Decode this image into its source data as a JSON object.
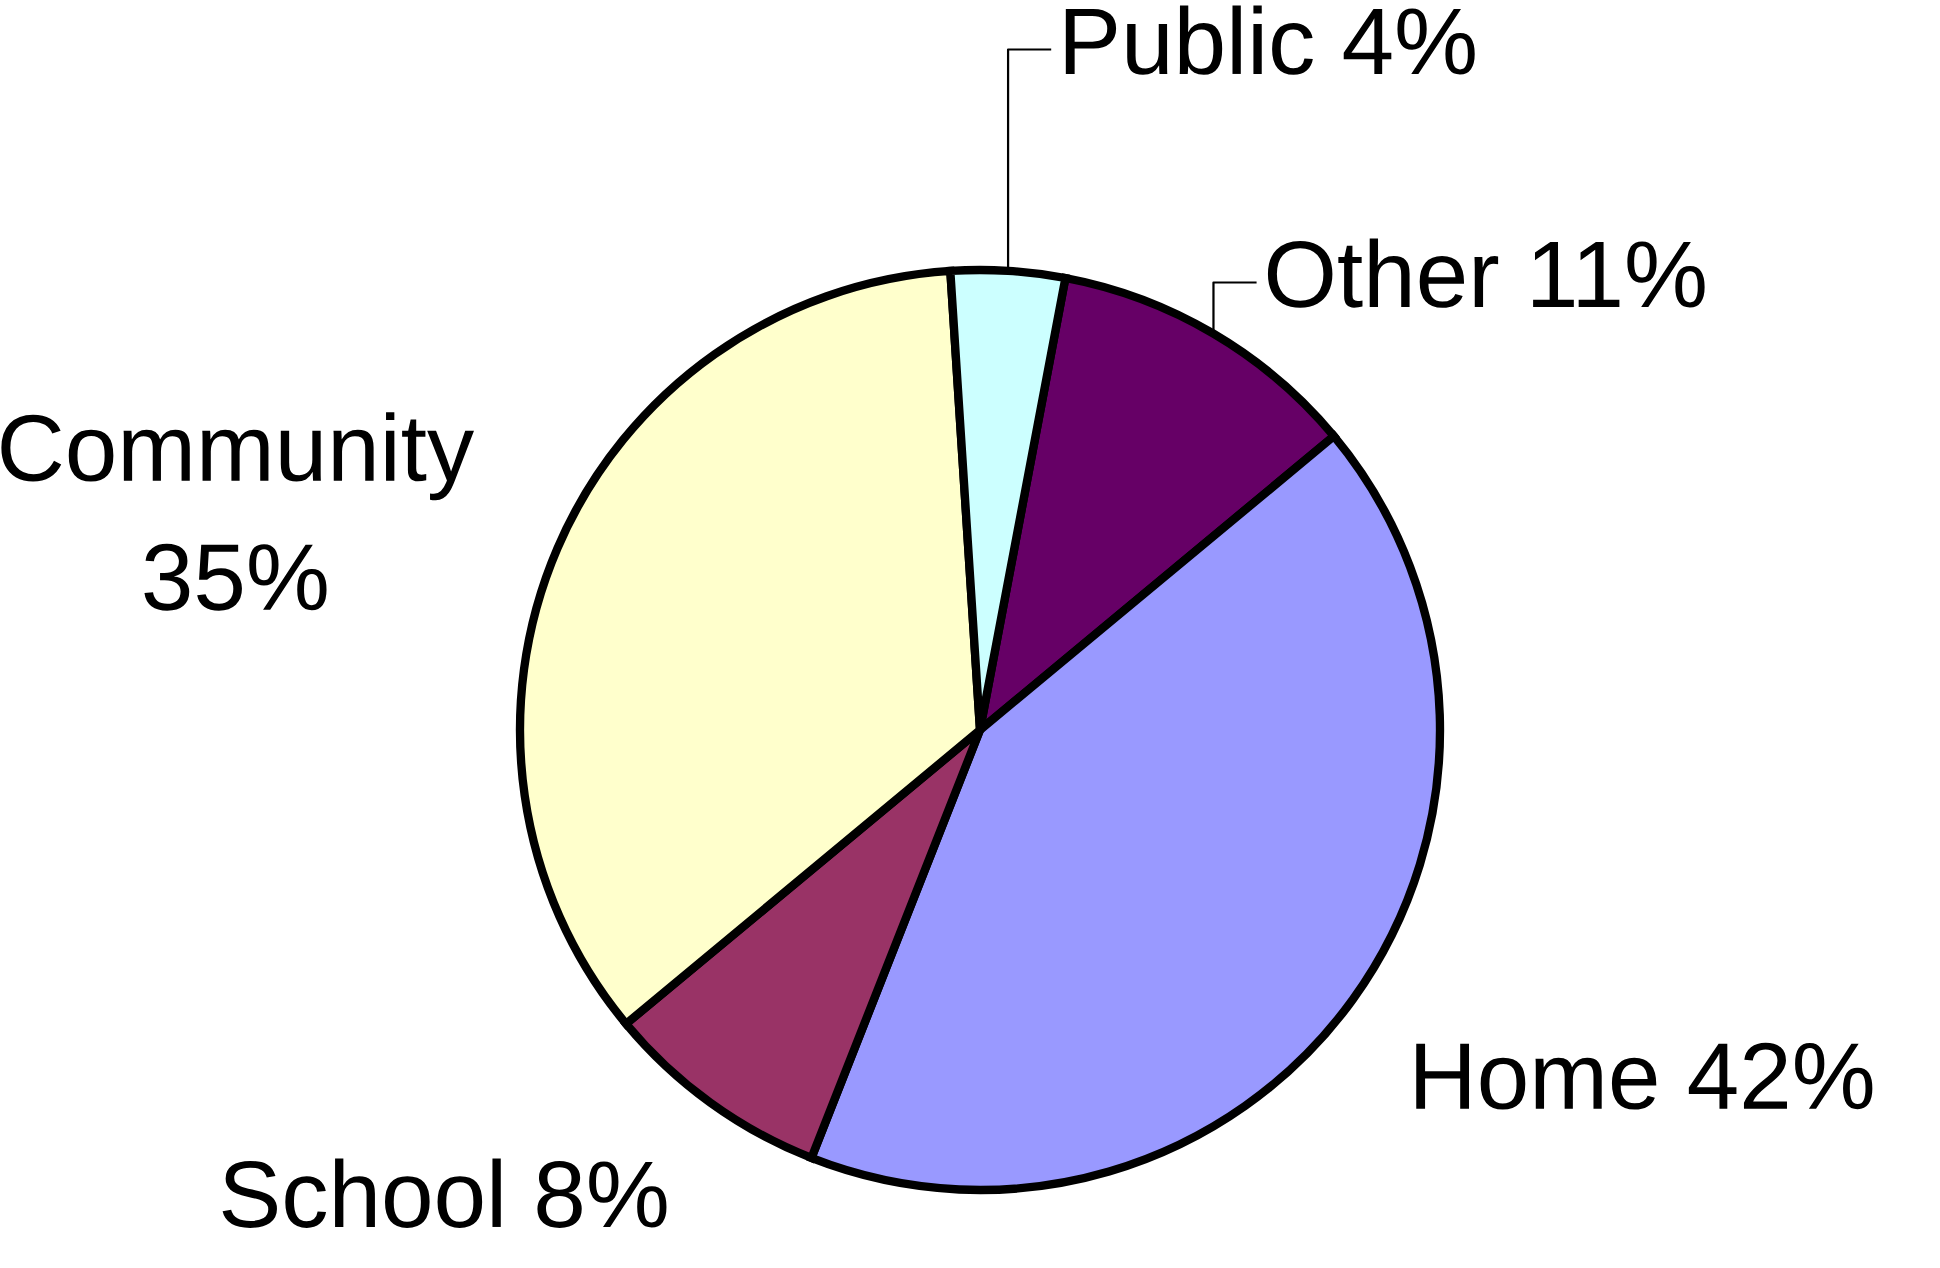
{
  "chart_data": {
    "type": "pie",
    "categories": [
      "Other",
      "Home",
      "School",
      "Community",
      "Public"
    ],
    "values": [
      11,
      42,
      8,
      35,
      4
    ],
    "value_labels": [
      "11%",
      "42%",
      "8%",
      "35%",
      "4%"
    ],
    "colors": [
      "#660066",
      "#9999ff",
      "#993366",
      "#ffffcc",
      "#ccffff"
    ]
  }
}
